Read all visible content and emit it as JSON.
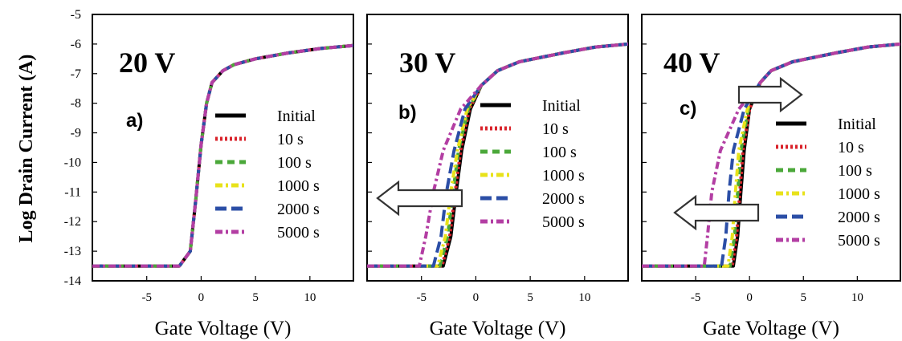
{
  "figure": {
    "ylabel": "Log Drain Current (A)",
    "yticks": [
      "-5",
      "-6",
      "-7",
      "-8",
      "-9",
      "-10",
      "-11",
      "-12",
      "-13",
      "-14"
    ]
  },
  "chart_data": [
    {
      "type": "line",
      "title": "20 V",
      "panel_label": "a)",
      "xlabel": "Gate Voltage (V)",
      "ylabel": "Log Drain Current (A)",
      "xlim": [
        -10,
        14
      ],
      "ylim": [
        -14,
        -5
      ],
      "xticks": [
        "-5",
        "0",
        "5",
        "10"
      ],
      "legend_placement": "center-right",
      "shift_arrows": [],
      "series": [
        {
          "name": "Initial",
          "color": "#000000",
          "dash": "solid",
          "x": [
            -10,
            -2,
            -1,
            -0.5,
            0,
            0.5,
            1,
            2,
            3,
            5,
            8,
            11,
            14
          ],
          "y": [
            -13.5,
            -13.5,
            -13,
            -11.3,
            -9.4,
            -8,
            -7.3,
            -6.9,
            -6.7,
            -6.5,
            -6.3,
            -6.15,
            -6.05
          ]
        },
        {
          "name": "10 s",
          "color": "#d9232b",
          "dash": "dot",
          "x": [
            -10,
            -2,
            -1,
            -0.5,
            0,
            0.5,
            1,
            2,
            3,
            5,
            8,
            11,
            14
          ],
          "y": [
            -13.5,
            -13.5,
            -13,
            -11.3,
            -9.4,
            -8,
            -7.3,
            -6.9,
            -6.7,
            -6.5,
            -6.3,
            -6.15,
            -6.05
          ]
        },
        {
          "name": "100 s",
          "color": "#4ba83a",
          "dash": "dash",
          "x": [
            -10,
            -2,
            -1,
            -0.5,
            0,
            0.5,
            1,
            2,
            3,
            5,
            8,
            11,
            14
          ],
          "y": [
            -13.5,
            -13.5,
            -13,
            -11.3,
            -9.4,
            -8,
            -7.3,
            -6.9,
            -6.7,
            -6.5,
            -6.3,
            -6.15,
            -6.05
          ]
        },
        {
          "name": "1000 s",
          "color": "#e8e21a",
          "dash": "dashdot",
          "x": [
            -10,
            -2,
            -1,
            -0.5,
            0,
            0.5,
            1,
            2,
            3,
            5,
            8,
            11,
            14
          ],
          "y": [
            -13.5,
            -13.5,
            -13,
            -11.3,
            -9.4,
            -8,
            -7.3,
            -6.9,
            -6.7,
            -6.5,
            -6.3,
            -6.15,
            -6.05
          ]
        },
        {
          "name": "2000 s",
          "color": "#2b4ea6",
          "dash": "longdash",
          "x": [
            -10,
            -2,
            -1,
            -0.5,
            0,
            0.5,
            1,
            2,
            3,
            5,
            8,
            11,
            14
          ],
          "y": [
            -13.5,
            -13.5,
            -13,
            -11.3,
            -9.4,
            -8,
            -7.3,
            -6.9,
            -6.7,
            -6.5,
            -6.3,
            -6.15,
            -6.05
          ]
        },
        {
          "name": "5000 s",
          "color": "#b33ea3",
          "dash": "dashdot",
          "x": [
            -10,
            -2,
            -1,
            -0.5,
            0,
            0.5,
            1,
            2,
            3,
            5,
            8,
            11,
            14
          ],
          "y": [
            -13.5,
            -13.5,
            -13,
            -11.3,
            -9.4,
            -8,
            -7.3,
            -6.9,
            -6.7,
            -6.5,
            -6.3,
            -6.15,
            -6.05
          ]
        }
      ]
    },
    {
      "type": "line",
      "title": "30 V",
      "panel_label": "b)",
      "xlabel": "Gate Voltage (V)",
      "ylabel": "Log Drain Current (A)",
      "xlim": [
        -10,
        14
      ],
      "ylim": [
        -14,
        -5
      ],
      "xticks": [
        "-5",
        "0",
        "5",
        "10"
      ],
      "legend_placement": "center-right",
      "shift_arrows": [
        {
          "direction": "left",
          "y": -11.3
        }
      ],
      "series": [
        {
          "name": "Initial",
          "color": "#000000",
          "dash": "solid",
          "x": [
            -10,
            -3,
            -2.3,
            -1.8,
            -1.3,
            -0.5,
            0.5,
            2,
            4,
            8,
            11,
            14
          ],
          "y": [
            -13.5,
            -13.5,
            -12.5,
            -11,
            -9.6,
            -8.2,
            -7.4,
            -6.9,
            -6.6,
            -6.3,
            -6.1,
            -6.0
          ]
        },
        {
          "name": "10 s",
          "color": "#d9232b",
          "dash": "dot",
          "x": [
            -10,
            -3.1,
            -2.4,
            -1.9,
            -1.4,
            -0.6,
            0.5,
            2,
            4,
            8,
            11,
            14
          ],
          "y": [
            -13.5,
            -13.5,
            -12.5,
            -11,
            -9.6,
            -8.2,
            -7.4,
            -6.9,
            -6.6,
            -6.3,
            -6.1,
            -6.0
          ]
        },
        {
          "name": "100 s",
          "color": "#4ba83a",
          "dash": "dash",
          "x": [
            -10,
            -3.3,
            -2.6,
            -2.1,
            -1.6,
            -0.7,
            0.5,
            2,
            4,
            8,
            11,
            14
          ],
          "y": [
            -13.5,
            -13.5,
            -12.5,
            -11,
            -9.6,
            -8.2,
            -7.4,
            -6.9,
            -6.6,
            -6.3,
            -6.1,
            -6.0
          ]
        },
        {
          "name": "1000 s",
          "color": "#e8e21a",
          "dash": "dashdot",
          "x": [
            -10,
            -3.5,
            -2.8,
            -2.3,
            -1.7,
            -0.8,
            0.5,
            2,
            4,
            8,
            11,
            14
          ],
          "y": [
            -13.5,
            -13.5,
            -12.5,
            -11,
            -9.6,
            -8.2,
            -7.4,
            -6.9,
            -6.6,
            -6.3,
            -6.1,
            -6.0
          ]
        },
        {
          "name": "2000 s",
          "color": "#2b4ea6",
          "dash": "longdash",
          "x": [
            -10,
            -3.9,
            -3.2,
            -2.7,
            -2.0,
            -1.0,
            0.5,
            2,
            4,
            8,
            11,
            14
          ],
          "y": [
            -13.5,
            -13.5,
            -12.5,
            -11,
            -9.6,
            -8.2,
            -7.4,
            -6.9,
            -6.6,
            -6.3,
            -6.1,
            -6.0
          ]
        },
        {
          "name": "5000 s",
          "color": "#b33ea3",
          "dash": "dashdot",
          "x": [
            -10,
            -5.2,
            -4.6,
            -3.9,
            -3.0,
            -1.4,
            0.5,
            2,
            4,
            8,
            11,
            14
          ],
          "y": [
            -13.5,
            -13.5,
            -12.5,
            -11,
            -9.6,
            -8.2,
            -7.4,
            -6.9,
            -6.6,
            -6.3,
            -6.1,
            -6.0
          ]
        }
      ]
    },
    {
      "type": "line",
      "title": "40 V",
      "panel_label": "c)",
      "xlabel": "Gate Voltage (V)",
      "ylabel": "Log Drain Current (A)",
      "xlim": [
        -10,
        14
      ],
      "ylim": [
        -14,
        -5
      ],
      "xticks": [
        "-5",
        "0",
        "5",
        "10"
      ],
      "legend_placement": "center-right",
      "shift_arrows": [
        {
          "direction": "right",
          "y": -7.75
        },
        {
          "direction": "left",
          "y": -12.5
        }
      ],
      "series": [
        {
          "name": "Initial",
          "color": "#000000",
          "dash": "solid",
          "x": [
            -10,
            -1.5,
            -1.1,
            -0.8,
            -0.5,
            0,
            1,
            2,
            4,
            8,
            11,
            14
          ],
          "y": [
            -13.5,
            -13.5,
            -12.5,
            -11,
            -9.6,
            -8.2,
            -7.3,
            -6.9,
            -6.6,
            -6.3,
            -6.1,
            -6.0
          ]
        },
        {
          "name": "10 s",
          "color": "#d9232b",
          "dash": "dot",
          "x": [
            -10,
            -1.6,
            -1.2,
            -0.9,
            -0.6,
            0,
            1,
            2,
            4,
            8,
            11,
            14
          ],
          "y": [
            -13.5,
            -13.5,
            -12.5,
            -11,
            -9.6,
            -8.2,
            -7.3,
            -6.9,
            -6.6,
            -6.3,
            -6.1,
            -6.0
          ]
        },
        {
          "name": "100 s",
          "color": "#4ba83a",
          "dash": "dash",
          "x": [
            -10,
            -1.8,
            -1.4,
            -1.1,
            -0.8,
            -0.1,
            1,
            2,
            4,
            8,
            11,
            14
          ],
          "y": [
            -13.5,
            -13.5,
            -12.5,
            -11,
            -9.6,
            -8.2,
            -7.3,
            -6.9,
            -6.6,
            -6.3,
            -6.1,
            -6.0
          ]
        },
        {
          "name": "1000 s",
          "color": "#e8e21a",
          "dash": "dashdot",
          "x": [
            -10,
            -2.0,
            -1.6,
            -1.3,
            -1.0,
            -0.2,
            1,
            2,
            4,
            8,
            11,
            14
          ],
          "y": [
            -13.5,
            -13.5,
            -12.5,
            -11,
            -9.6,
            -8.2,
            -7.3,
            -6.9,
            -6.6,
            -6.3,
            -6.1,
            -6.0
          ]
        },
        {
          "name": "2000 s",
          "color": "#2b4ea6",
          "dash": "longdash",
          "x": [
            -10,
            -2.6,
            -2.2,
            -1.9,
            -1.5,
            -0.5,
            1,
            2,
            4,
            8,
            11,
            14
          ],
          "y": [
            -13.5,
            -13.5,
            -12.5,
            -11,
            -9.6,
            -8.2,
            -7.3,
            -6.9,
            -6.6,
            -6.3,
            -6.1,
            -6.0
          ]
        },
        {
          "name": "5000 s",
          "color": "#b33ea3",
          "dash": "dashdot",
          "x": [
            -10,
            -4.2,
            -3.9,
            -3.5,
            -2.7,
            -1.0,
            1,
            2,
            4,
            8,
            11,
            14
          ],
          "y": [
            -13.5,
            -13.5,
            -12.5,
            -11,
            -9.6,
            -8.2,
            -7.3,
            -6.9,
            -6.6,
            -6.3,
            -6.1,
            -6.0
          ]
        }
      ]
    }
  ]
}
